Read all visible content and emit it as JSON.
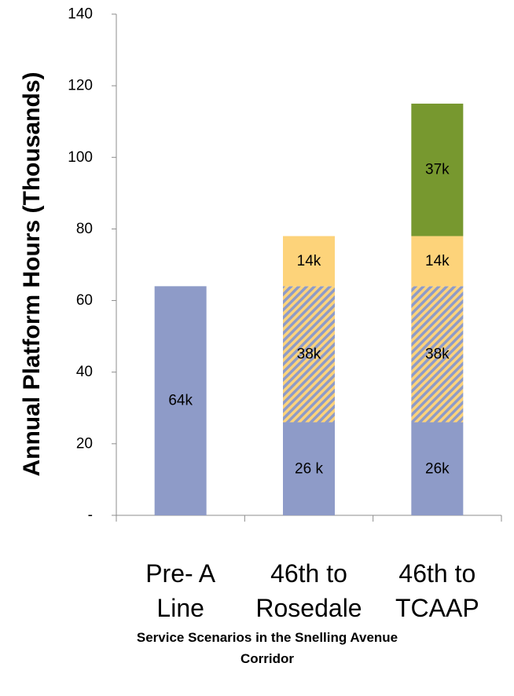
{
  "chart_data": {
    "type": "bar",
    "stacked": true,
    "categories": [
      [
        "Pre- A",
        "Line"
      ],
      [
        "46th to",
        "Rosedale"
      ],
      [
        "46th to",
        "TCAAP"
      ]
    ],
    "series": [
      {
        "values": [
          64,
          26,
          26
        ],
        "labels": [
          "64k",
          "26 k",
          "26k"
        ],
        "color": "#8e9bc8",
        "pattern": "solid"
      },
      {
        "values": [
          0,
          38,
          38
        ],
        "labels": [
          "",
          "38k",
          "38k"
        ],
        "color": "#fdd37a",
        "pattern": "hatch"
      },
      {
        "values": [
          0,
          14,
          14
        ],
        "labels": [
          "",
          "14k",
          "14k"
        ],
        "color": "#fdd37a",
        "pattern": "solid"
      },
      {
        "values": [
          0,
          0,
          37
        ],
        "labels": [
          "",
          "",
          "37k"
        ],
        "color": "#77982f",
        "pattern": "solid"
      }
    ],
    "hatch_color": "#8e9bc8",
    "ylabel": "Annual Platform Hours (Thousands)",
    "xlabel": [
      "Service Scenarios in the Snelling Avenue",
      "Corridor"
    ],
    "ylim": [
      0,
      140
    ],
    "yticks": [
      0,
      20,
      40,
      60,
      80,
      100,
      120,
      140
    ],
    "ytick_labels": [
      "-",
      "20",
      "40",
      "60",
      "80",
      "100",
      "120",
      "140"
    ],
    "grid": false,
    "legend": "none"
  }
}
